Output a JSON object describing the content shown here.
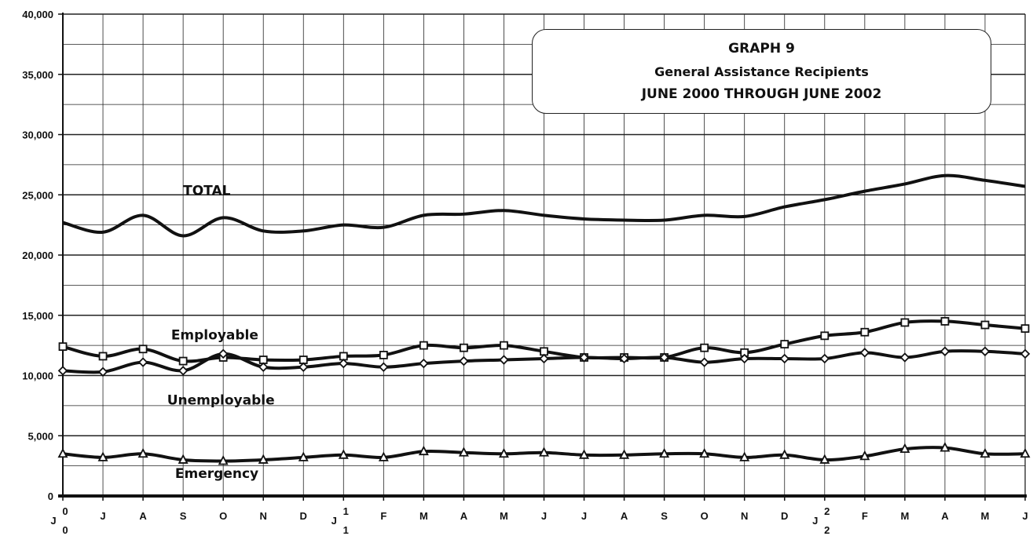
{
  "chart_data": {
    "type": "line",
    "title": "GRAPH 9",
    "subtitle": "General Assistance Recipients",
    "subtitle2": "JUNE 2000 THROUGH JUNE 2002",
    "ylim": [
      0,
      40000
    ],
    "yticks": [
      "0",
      "5,000",
      "10,000",
      "15,000",
      "20,000",
      "25,000",
      "30,000",
      "35,000",
      "40,000"
    ],
    "categories": [
      "J",
      "J",
      "A",
      "S",
      "O",
      "N",
      "D",
      "J",
      "F",
      "M",
      "A",
      "M",
      "J",
      "J",
      "A",
      "S",
      "O",
      "N",
      "D",
      "J",
      "F",
      "M",
      "A",
      "M",
      "J"
    ],
    "year_marks": [
      {
        "index": 0,
        "text": "0"
      },
      {
        "index": 7,
        "text": "1"
      },
      {
        "index": 19,
        "text": "2"
      }
    ],
    "grid": true,
    "series": [
      {
        "name": "TOTAL",
        "marker": "none",
        "values": [
          22700,
          21900,
          23300,
          21600,
          23100,
          22000,
          22000,
          22500,
          22300,
          23300,
          23400,
          23700,
          23300,
          23000,
          22900,
          22900,
          23300,
          23200,
          24000,
          24600,
          25300,
          25900,
          26600,
          26200,
          25700
        ]
      },
      {
        "name": "Employable",
        "marker": "square",
        "values": [
          12400,
          11600,
          12200,
          11200,
          11500,
          11300,
          11300,
          11600,
          11700,
          12500,
          12300,
          12500,
          12000,
          11500,
          11500,
          11500,
          12300,
          11900,
          12600,
          13300,
          13600,
          14400,
          14500,
          14200,
          13900
        ]
      },
      {
        "name": "Unemployable",
        "marker": "diamond",
        "values": [
          10400,
          10300,
          11100,
          10400,
          11800,
          10700,
          10700,
          11000,
          10700,
          11000,
          11200,
          11300,
          11400,
          11500,
          11400,
          11500,
          11100,
          11400,
          11400,
          11400,
          11900,
          11500,
          12000,
          12000,
          11800
        ]
      },
      {
        "name": "Emergency",
        "marker": "triangle",
        "values": [
          3500,
          3200,
          3500,
          3000,
          2900,
          3000,
          3200,
          3400,
          3200,
          3700,
          3600,
          3500,
          3600,
          3400,
          3400,
          3500,
          3500,
          3200,
          3400,
          3000,
          3300,
          3900,
          4000,
          3500,
          3500
        ]
      }
    ]
  }
}
